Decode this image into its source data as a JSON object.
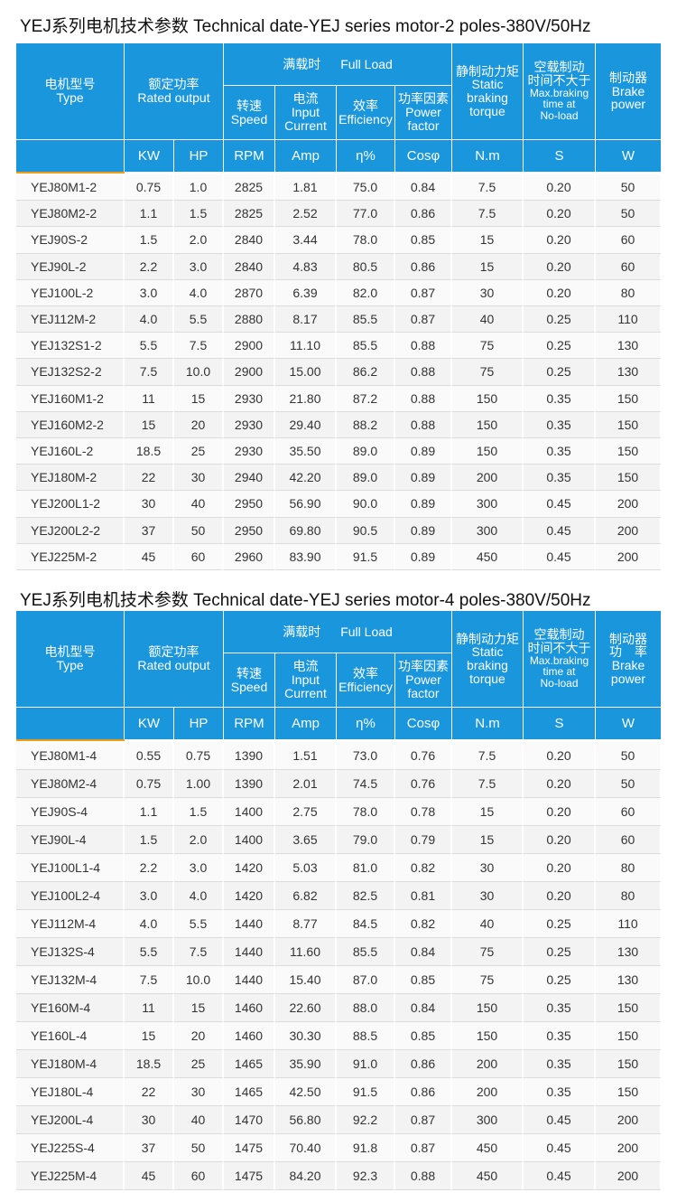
{
  "tables": [
    {
      "title": "YEJ系列电机技术参数  Technical date-YEJ series motor-2 poles-380V/50Hz",
      "header": {
        "type": [
          "电机型号",
          "Type"
        ],
        "rated_output": [
          "额定功率",
          "Rated output"
        ],
        "full_load": [
          "满载时",
          "Full Load"
        ],
        "speed": [
          "转速",
          "Speed"
        ],
        "current": [
          "电流",
          "Input",
          "Current"
        ],
        "efficiency": [
          "效率",
          "Efficiency"
        ],
        "power_factor": [
          "功率因素",
          "Power",
          "factor"
        ],
        "static_torque": [
          "静制动力矩",
          "Static",
          "braking",
          "torque"
        ],
        "braking_time": [
          "空载制动",
          "时间不大于",
          "Max.braking",
          "time at",
          "No-load"
        ],
        "brake_power": [
          "制动器",
          "Brake",
          "power"
        ]
      },
      "units": [
        "KW",
        "HP",
        "RPM",
        "Amp",
        "η%",
        "Cosφ",
        "N.m",
        "S",
        "W"
      ],
      "rows": [
        [
          "YEJ80M1-2",
          "0.75",
          "1.0",
          "2825",
          "1.81",
          "75.0",
          "0.84",
          "7.5",
          "0.20",
          "50"
        ],
        [
          "YEJ80M2-2",
          "1.1",
          "1.5",
          "2825",
          "2.52",
          "77.0",
          "0.86",
          "7.5",
          "0.20",
          "50"
        ],
        [
          "YEJ90S-2",
          "1.5",
          "2.0",
          "2840",
          "3.44",
          "78.0",
          "0.85",
          "15",
          "0.20",
          "60"
        ],
        [
          "YEJ90L-2",
          "2.2",
          "3.0",
          "2840",
          "4.83",
          "80.5",
          "0.86",
          "15",
          "0.20",
          "60"
        ],
        [
          "YEJ100L-2",
          "3.0",
          "4.0",
          "2870",
          "6.39",
          "82.0",
          "0.87",
          "30",
          "0.20",
          "80"
        ],
        [
          "YEJ112M-2",
          "4.0",
          "5.5",
          "2880",
          "8.17",
          "85.5",
          "0.87",
          "40",
          "0.25",
          "110"
        ],
        [
          "YEJ132S1-2",
          "5.5",
          "7.5",
          "2900",
          "11.10",
          "85.5",
          "0.88",
          "75",
          "0.25",
          "130"
        ],
        [
          "YEJ132S2-2",
          "7.5",
          "10.0",
          "2900",
          "15.00",
          "86.2",
          "0.88",
          "75",
          "0.25",
          "130"
        ],
        [
          "YEJ160M1-2",
          "11",
          "15",
          "2930",
          "21.80",
          "87.2",
          "0.88",
          "150",
          "0.35",
          "150"
        ],
        [
          "YEJ160M2-2",
          "15",
          "20",
          "2930",
          "29.40",
          "88.2",
          "0.88",
          "150",
          "0.35",
          "150"
        ],
        [
          "YEJ160L-2",
          "18.5",
          "25",
          "2930",
          "35.50",
          "89.0",
          "0.89",
          "150",
          "0.35",
          "150"
        ],
        [
          "YEJ180M-2",
          "22",
          "30",
          "2940",
          "42.20",
          "89.0",
          "0.89",
          "200",
          "0.35",
          "150"
        ],
        [
          "YEJ200L1-2",
          "30",
          "40",
          "2950",
          "56.90",
          "90.0",
          "0.89",
          "300",
          "0.45",
          "200"
        ],
        [
          "YEJ200L2-2",
          "37",
          "50",
          "2950",
          "69.80",
          "90.5",
          "0.89",
          "300",
          "0.45",
          "200"
        ],
        [
          "YEJ225M-2",
          "45",
          "60",
          "2960",
          "83.90",
          "91.5",
          "0.89",
          "450",
          "0.45",
          "200"
        ]
      ]
    },
    {
      "title": "YEJ系列电机技术参数  Technical date-YEJ series motor-4 poles-380V/50Hz",
      "header": {
        "type": [
          "电机型号",
          "Type"
        ],
        "rated_output": [
          "额定功率",
          "Rated output"
        ],
        "full_load": [
          "满载时",
          "Full Load"
        ],
        "speed": [
          "转速",
          "Speed"
        ],
        "current": [
          "电流",
          "Input",
          "Current"
        ],
        "efficiency": [
          "效率",
          "Efficiency"
        ],
        "power_factor": [
          "功率因素",
          "Power",
          "factor"
        ],
        "static_torque": [
          "静制动力矩",
          "Static",
          "braking",
          "torque"
        ],
        "braking_time": [
          "空载制动",
          "时间不大于",
          "Max.braking",
          "time at",
          "No-load"
        ],
        "brake_power": [
          "制动器",
          "功　率",
          "Brake",
          "power"
        ]
      },
      "units": [
        "KW",
        "HP",
        "RPM",
        "Amp",
        "η%",
        "Cosφ",
        "N.m",
        "S",
        "W"
      ],
      "rows": [
        [
          "YEJ80M1-4",
          "0.55",
          "0.75",
          "1390",
          "1.51",
          "73.0",
          "0.76",
          "7.5",
          "0.20",
          "50"
        ],
        [
          "YEJ80M2-4",
          "0.75",
          "1.00",
          "1390",
          "2.01",
          "74.5",
          "0.76",
          "7.5",
          "0.20",
          "50"
        ],
        [
          "YEJ90S-4",
          "1.1",
          "1.5",
          "1400",
          "2.75",
          "78.0",
          "0.78",
          "15",
          "0.20",
          "60"
        ],
        [
          "YEJ90L-4",
          "1.5",
          "2.0",
          "1400",
          "3.65",
          "79.0",
          "0.79",
          "15",
          "0.20",
          "60"
        ],
        [
          "YEJ100L1-4",
          "2.2",
          "3.0",
          "1420",
          "5.03",
          "81.0",
          "0.82",
          "30",
          "0.20",
          "80"
        ],
        [
          "YEJ100L2-4",
          "3.0",
          "4.0",
          "1420",
          "6.82",
          "82.5",
          "0.81",
          "30",
          "0.20",
          "80"
        ],
        [
          "YEJ112M-4",
          "4.0",
          "5.5",
          "1440",
          "8.77",
          "84.5",
          "0.82",
          "40",
          "0.25",
          "110"
        ],
        [
          "YEJ132S-4",
          "5.5",
          "7.5",
          "1440",
          "11.60",
          "85.5",
          "0.84",
          "75",
          "0.25",
          "130"
        ],
        [
          "YEJ132M-4",
          "7.5",
          "10.0",
          "1440",
          "15.40",
          "87.0",
          "0.85",
          "75",
          "0.25",
          "130"
        ],
        [
          "YE160M-4",
          "11",
          "15",
          "1460",
          "22.60",
          "88.0",
          "0.84",
          "150",
          "0.35",
          "150"
        ],
        [
          "YE160L-4",
          "15",
          "20",
          "1460",
          "30.30",
          "88.5",
          "0.85",
          "150",
          "0.35",
          "150"
        ],
        [
          "YEJ180M-4",
          "18.5",
          "25",
          "1465",
          "35.90",
          "91.0",
          "0.86",
          "200",
          "0.35",
          "150"
        ],
        [
          "YEJ180L-4",
          "22",
          "30",
          "1465",
          "42.50",
          "91.5",
          "0.86",
          "200",
          "0.35",
          "150"
        ],
        [
          "YEJ200L-4",
          "30",
          "40",
          "1470",
          "56.80",
          "92.2",
          "0.87",
          "300",
          "0.45",
          "200"
        ],
        [
          "YEJ225S-4",
          "37",
          "50",
          "1475",
          "70.40",
          "91.8",
          "0.87",
          "450",
          "0.45",
          "200"
        ],
        [
          "YEJ225M-4",
          "45",
          "60",
          "1475",
          "84.20",
          "92.3",
          "0.88",
          "450",
          "0.45",
          "200"
        ]
      ]
    }
  ]
}
